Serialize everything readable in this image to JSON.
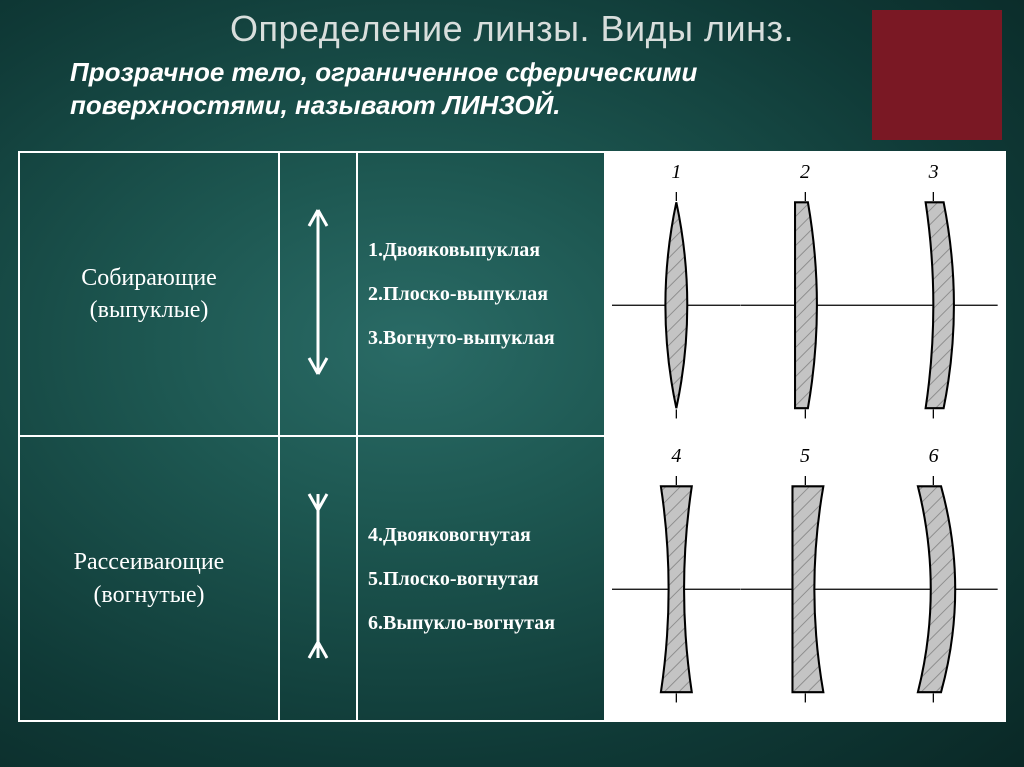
{
  "title": "Определение линзы. Виды линз.",
  "definition": "Прозрачное тело, ограниченное сферическими поверхностями, называют ЛИНЗОЙ.",
  "corner_color": "#7a1824",
  "table": {
    "border_color": "#ffffff",
    "rows": [
      {
        "name_line1": "Собирающие",
        "name_line2": "(выпуклые)",
        "symbol": "converging",
        "list": [
          "1.Двояковыпуклая",
          "2.Плоско-выпуклая",
          "3.Вогнуто-выпуклая"
        ],
        "lenses": [
          {
            "num": "1",
            "type": "biconvex"
          },
          {
            "num": "2",
            "type": "plano-convex"
          },
          {
            "num": "3",
            "type": "concavo-convex"
          }
        ]
      },
      {
        "name_line1": "Рассеивающие",
        "name_line2": "(вогнутые)",
        "symbol": "diverging",
        "list": [
          "4.Двояковогнутая",
          "5.Плоско-вогнутая",
          "6.Выпукло-вогнутая"
        ],
        "lenses": [
          {
            "num": "4",
            "type": "biconcave"
          },
          {
            "num": "5",
            "type": "plano-concave"
          },
          {
            "num": "6",
            "type": "convexo-concave"
          }
        ]
      }
    ]
  },
  "diagram_style": {
    "fill": "#c4c4c4",
    "hatch": "#8a8a8a",
    "stroke": "#000000",
    "axis": "#000000",
    "tick": "#000000",
    "bg": "#ffffff"
  }
}
